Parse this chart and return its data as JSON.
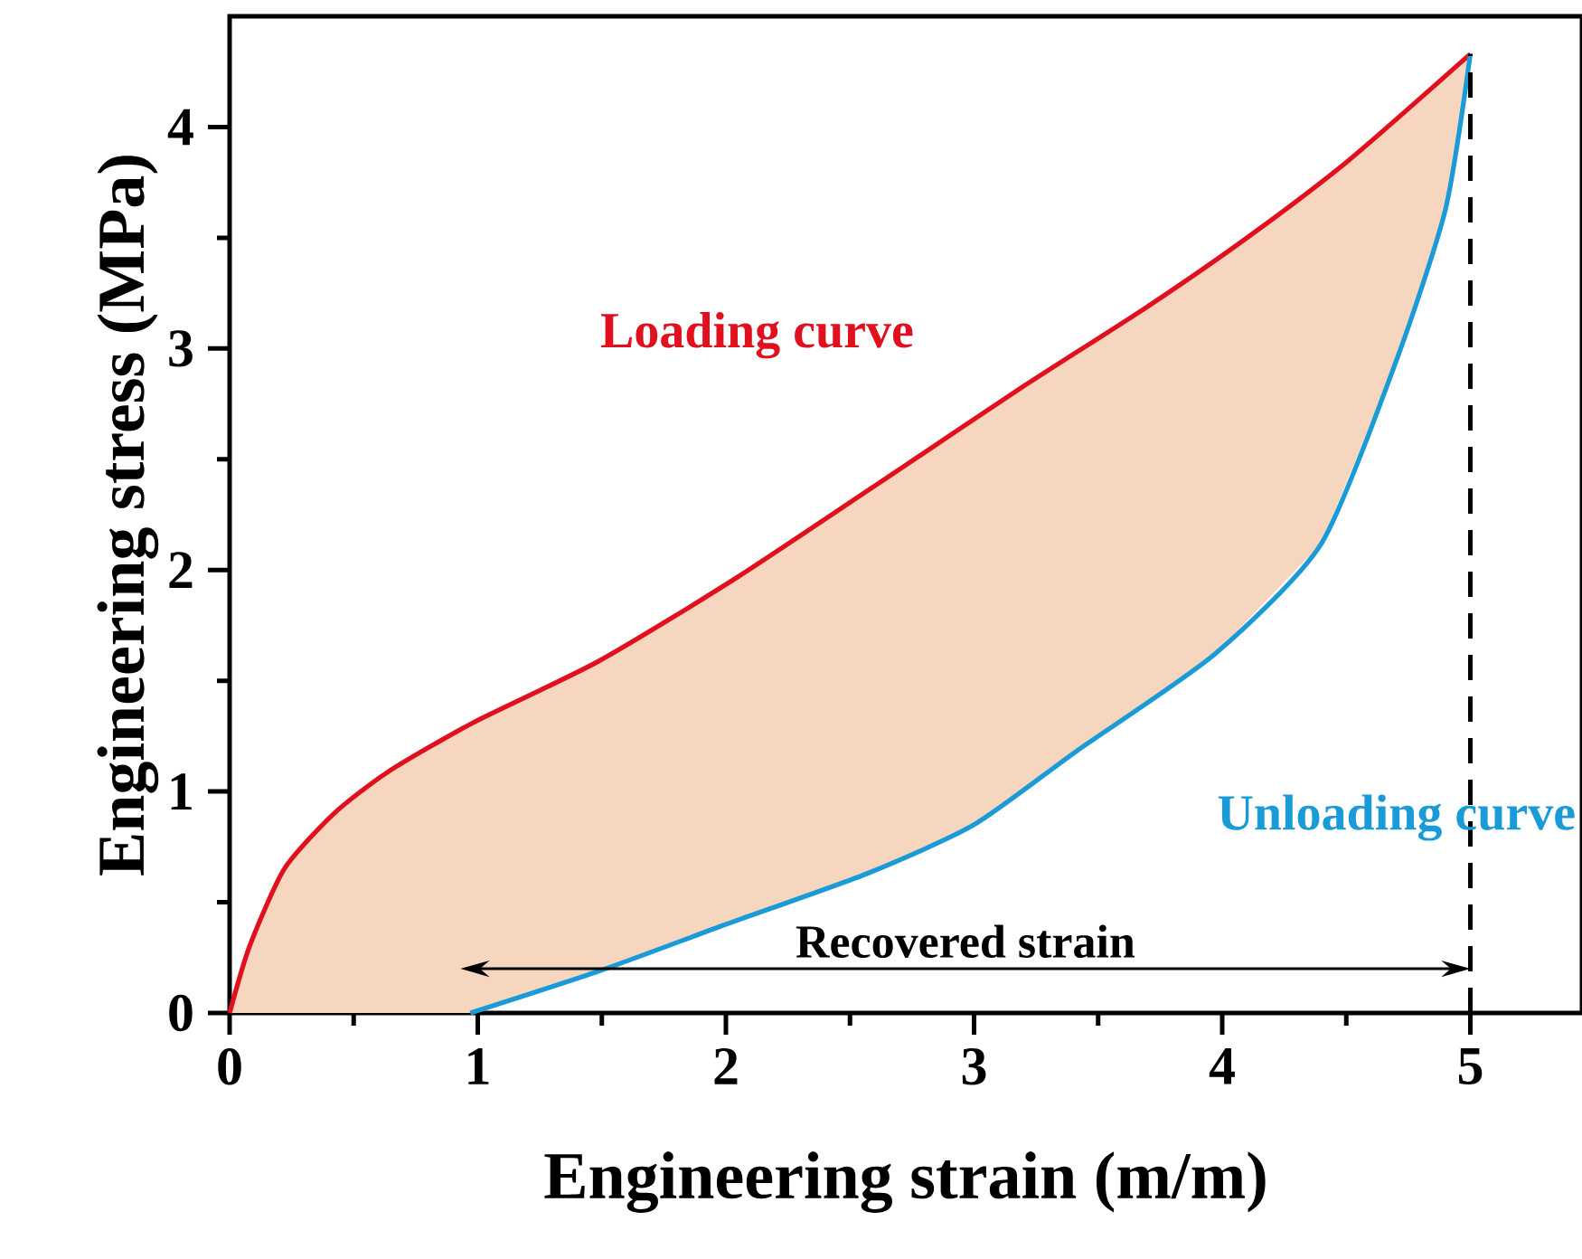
{
  "chart_data": {
    "type": "line",
    "xlabel": "Engineering strain (m/m)",
    "ylabel": "Engineering stress (MPa)",
    "xlim": [
      0,
      5.45
    ],
    "ylim": [
      0,
      4.5
    ],
    "xticks": [
      0,
      1,
      2,
      3,
      4,
      5
    ],
    "yticks": [
      0,
      1,
      2,
      3,
      4
    ],
    "grid": false,
    "legend": false,
    "marker": "none",
    "line_style": "solid",
    "series": [
      {
        "name": "Loading curve",
        "color": "#e0101e",
        "x": [
          0,
          0.08,
          0.22,
          0.42,
          0.64,
          0.98,
          1.49,
          2.05,
          2.72,
          3.2,
          3.7,
          4.1,
          4.51,
          5.0
        ],
        "values": [
          0,
          0.3,
          0.65,
          0.9,
          1.09,
          1.31,
          1.59,
          1.97,
          2.47,
          2.83,
          3.19,
          3.5,
          3.85,
          4.33
        ]
      },
      {
        "name": "Unloading curve",
        "color": "#1a9bd7",
        "x": [
          0.97,
          1.49,
          2.0,
          2.57,
          3.0,
          3.41,
          3.97,
          4.4,
          4.7,
          4.9,
          5.0
        ],
        "values": [
          0,
          0.19,
          0.4,
          0.63,
          0.85,
          1.18,
          1.62,
          2.12,
          2.94,
          3.63,
          4.33
        ]
      }
    ],
    "ref_lines": [
      {
        "axis": "x",
        "value": 5,
        "color": "#000000",
        "line_style": "dashed"
      }
    ],
    "annotations": [
      "Recovered strain"
    ]
  }
}
